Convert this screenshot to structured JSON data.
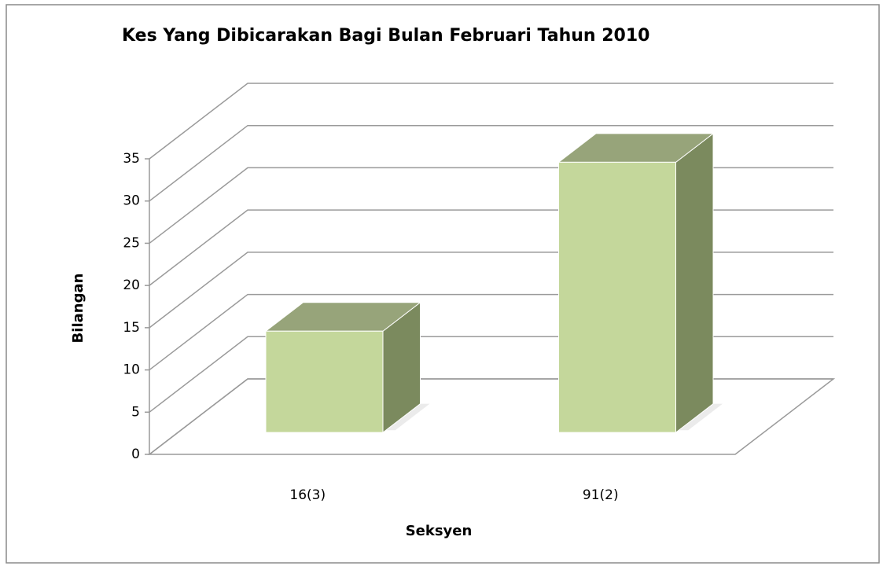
{
  "chart_data": {
    "type": "bar",
    "title": "Kes Yang Dibicarakan Bagi Bulan Februari Tahun 2010",
    "x_label": "Seksyen",
    "y_label": "Bilangan",
    "categories": [
      "16(3)",
      "91(2)"
    ],
    "values": [
      12,
      32
    ],
    "color": "#c4d79b",
    "ylim": [
      0,
      35
    ],
    "yticks": [
      0,
      5,
      10,
      15,
      20,
      25,
      30,
      35
    ],
    "grid": true
  }
}
